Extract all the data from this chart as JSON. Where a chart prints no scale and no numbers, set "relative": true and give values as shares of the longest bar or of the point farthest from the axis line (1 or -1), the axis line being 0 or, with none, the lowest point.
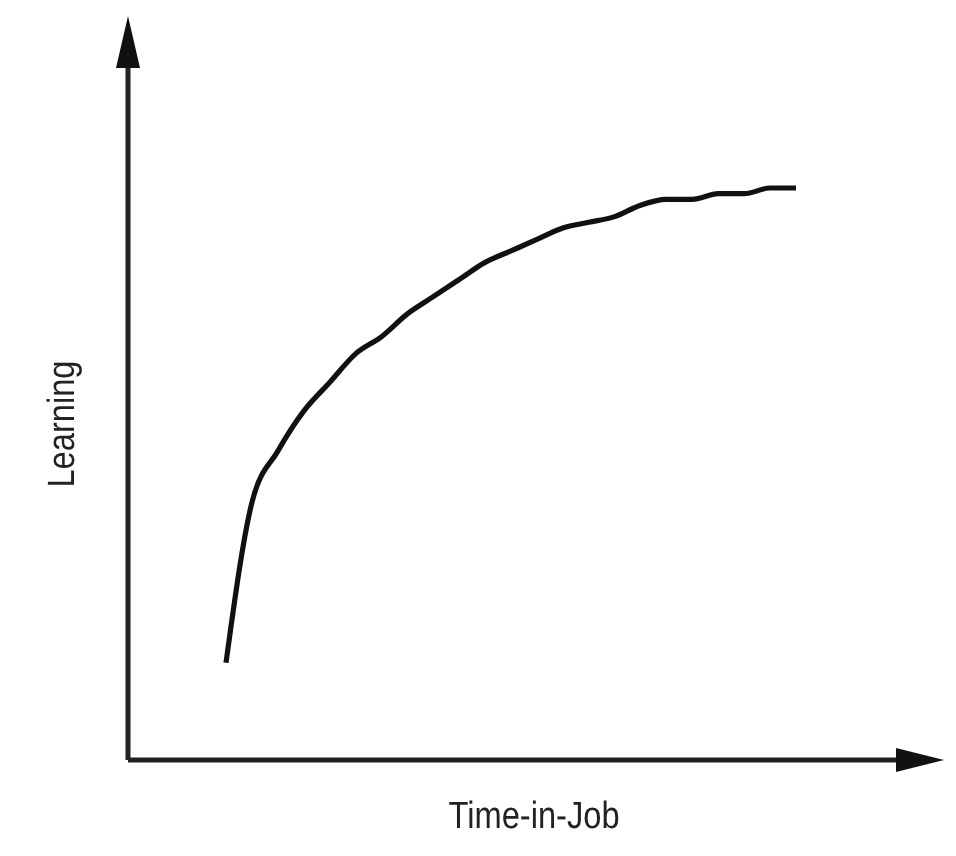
{
  "chart_data": {
    "type": "line",
    "xlabel": "Time-in-Job",
    "ylabel": "Learning",
    "relative": true,
    "categories": [
      null,
      null,
      null,
      null,
      null,
      null,
      null,
      null,
      null,
      null,
      null,
      null,
      null,
      null,
      null,
      null,
      null,
      null,
      null,
      null,
      null,
      null,
      null
    ],
    "values": [
      0.17,
      0.45,
      0.54,
      0.61,
      0.66,
      0.71,
      0.74,
      0.78,
      0.81,
      0.84,
      0.87,
      0.89,
      0.91,
      0.93,
      0.94,
      0.95,
      0.97,
      0.98,
      0.98,
      0.99,
      0.99,
      1,
      1
    ],
    "color": "#111111"
  }
}
